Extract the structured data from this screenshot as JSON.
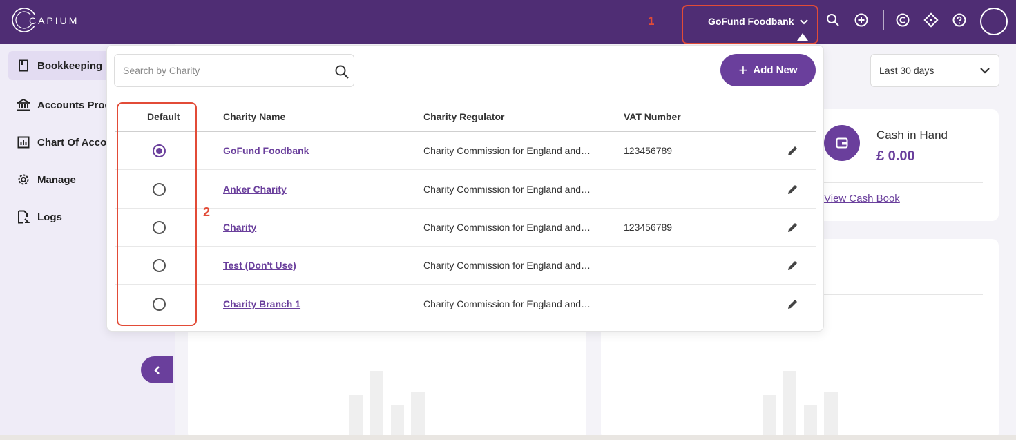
{
  "app": {
    "logo_text": "CAPIUM",
    "org_selector": {
      "label": "GoFund Foodbank",
      "marker": "1"
    },
    "top_icons": [
      "search-icon",
      "add-circle-icon",
      "capium-icon",
      "diamond-icon",
      "help-icon",
      "avatar"
    ]
  },
  "sidebar": {
    "items": [
      {
        "label": "Bookkeeping",
        "icon": "book-icon",
        "active": true
      },
      {
        "label": "Accounts Prod",
        "icon": "bank-icon",
        "active": false
      },
      {
        "label": "Chart Of Accou",
        "icon": "chart-icon",
        "active": false
      },
      {
        "label": "Manage",
        "icon": "gear-icon",
        "active": false
      },
      {
        "label": "Logs",
        "icon": "logs-icon",
        "active": false
      }
    ]
  },
  "dashboard": {
    "range": "Last 30 days",
    "cash": {
      "label": "Cash in Hand",
      "value": "£ 0.00",
      "link": "View Cash Book"
    }
  },
  "charity_panel": {
    "search_placeholder": "Search by Charity",
    "add_button": "Add New",
    "marker": "2",
    "columns": [
      "Default",
      "Charity Name",
      "Charity Regulator",
      "VAT Number"
    ],
    "rows": [
      {
        "default": true,
        "name": "GoFund Foodbank",
        "regulator": "Charity Commission for England and…",
        "vat": "123456789"
      },
      {
        "default": false,
        "name": "Anker Charity",
        "regulator": "Charity Commission for England and…",
        "vat": ""
      },
      {
        "default": false,
        "name": "Charity",
        "regulator": "Charity Commission for England and…",
        "vat": "123456789"
      },
      {
        "default": false,
        "name": "Test (Don't Use)",
        "regulator": "Charity Commission for England and…",
        "vat": ""
      },
      {
        "default": false,
        "name": "Charity Branch 1",
        "regulator": "Charity Commission for England and…",
        "vat": ""
      }
    ]
  },
  "colors": {
    "brand": "#4f2d74",
    "accent": "#6a3f9c",
    "highlight": "#e24b37"
  }
}
